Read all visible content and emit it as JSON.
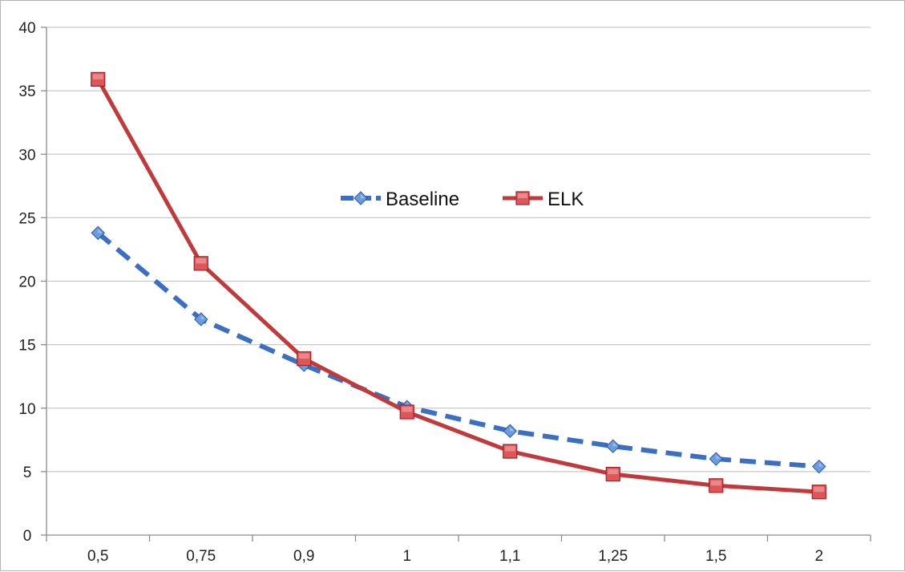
{
  "chart_data": {
    "type": "line",
    "title": "",
    "xlabel": "",
    "ylabel": "",
    "categories": [
      "0,5",
      "0,75",
      "0,9",
      "1",
      "1,1",
      "1,25",
      "1,5",
      "2"
    ],
    "ylim": [
      0,
      40
    ],
    "yticks": [
      0,
      5,
      10,
      15,
      20,
      25,
      30,
      35,
      40
    ],
    "ytick_labels": [
      "0",
      "5",
      "10",
      "15",
      "20",
      "25",
      "30",
      "35",
      "40"
    ],
    "grid": "horizontal",
    "legend_position": "center",
    "series": [
      {
        "name": "Baseline",
        "values": [
          23.8,
          17.0,
          13.4,
          10.1,
          8.2,
          7.0,
          6.0,
          5.4
        ],
        "color": "#3a6fc4",
        "marker": "diamond",
        "line_style": "dashed"
      },
      {
        "name": "ELK",
        "values": [
          35.9,
          21.4,
          13.9,
          9.7,
          6.6,
          4.8,
          3.9,
          3.4
        ],
        "color": "#c0393b",
        "marker": "square",
        "line_style": "solid"
      }
    ]
  }
}
